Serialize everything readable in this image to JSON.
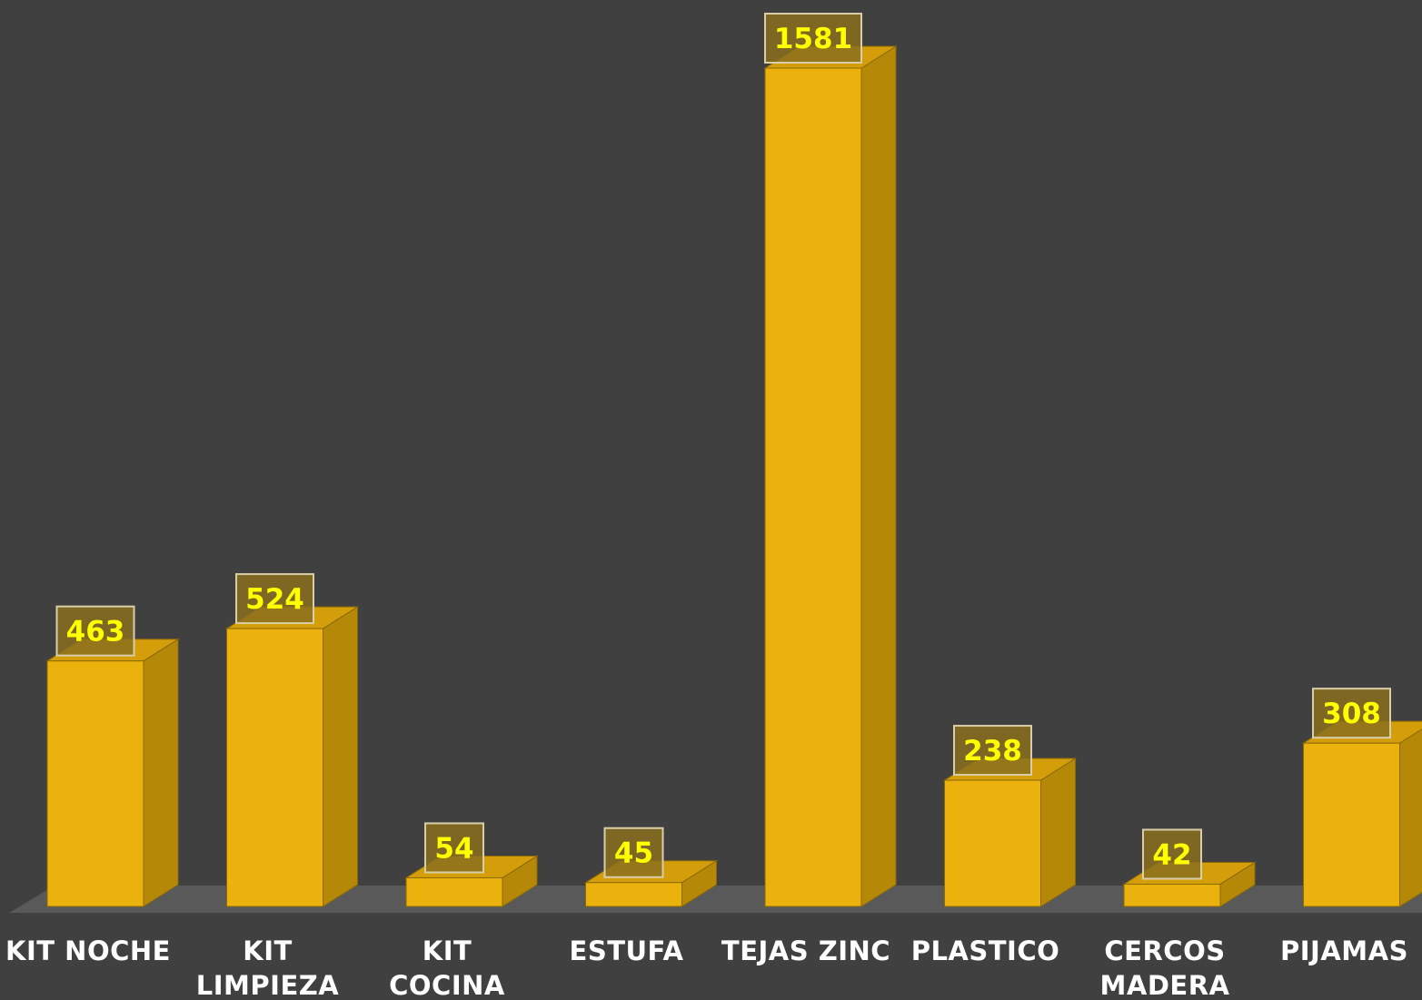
{
  "chart_data": {
    "type": "bar",
    "categories": [
      "KIT NOCHE",
      "KIT LIMPIEZA",
      "KIT COCINA",
      "ESTUFA",
      "TEJAS ZINC",
      "PLASTICO",
      "CERCOS MADERA",
      "PIJAMAS"
    ],
    "values": [
      463,
      524,
      54,
      45,
      1581,
      238,
      42,
      308
    ],
    "title": "",
    "xlabel": "",
    "ylabel": "",
    "ylim": [
      0,
      1581
    ],
    "grid": false,
    "legend": "none",
    "data_labels": true,
    "three_d": true
  },
  "colors": {
    "background": "#404040",
    "floor": "#595959",
    "bar_front": "#ebb10c",
    "bar_side": "#b68808",
    "bar_top": "#d49e0a",
    "bar_edge": "#8a6a08",
    "label_box_fill": "#8a6f1f",
    "label_box_border": "#d8cfa8",
    "label_text": "#ffff00",
    "category_text": "#ffffff"
  }
}
